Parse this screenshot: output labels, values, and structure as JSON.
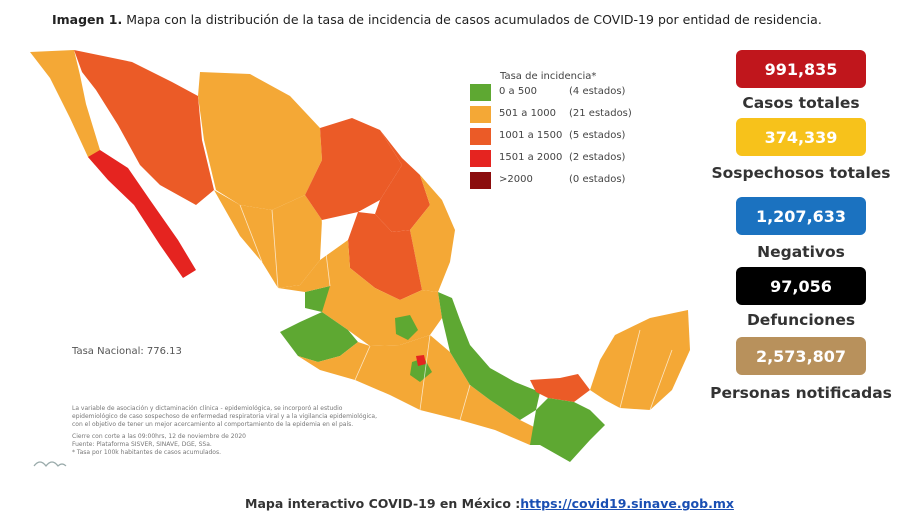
{
  "caption": {
    "lead": "Imagen 1.",
    "text": "Mapa con la distribución de la tasa de incidencia de casos acumulados de COVID-19 por entidad de residencia."
  },
  "legend": {
    "title": "Tasa de incidencia*",
    "items": [
      {
        "range": "0 a   500",
        "count": "(4 estados)",
        "color": "#5ea832"
      },
      {
        "range": "501 a  1000",
        "count": "(21 estados)",
        "color": "#f4a836"
      },
      {
        "range": "1001 a  1500",
        "count": "(5 estados)",
        "color": "#eb5b27"
      },
      {
        "range": "1501 a  2000",
        "count": "(2 estados)",
        "color": "#e52420"
      },
      {
        "range": ">2000",
        "count": "(0 estados)",
        "color": "#8b0d0d"
      }
    ]
  },
  "national_rate": "Tasa Nacional: 776.13",
  "notes": [
    "La variable de asociación y dictaminación clínica - epidemiológica, se incorporó al estudio",
    "epidemiológico de caso sospechoso de enfermedad respiratoria viral y a la vigilancia epidemiológica,",
    "con el objetivo de tener un mejor acercamiento al comportamiento de la epidemia en el país.",
    "Cierre con corte a las 09:00hrs, 12 de noviembre de 2020",
    "Fuente: Plataforma SISVER, SINAVE, DGE, SSa.",
    "* Tasa por 100k habitantes de casos acumulados."
  ],
  "stats": [
    {
      "value": "991,835",
      "label": "Casos totales",
      "color": "#c0161c"
    },
    {
      "value": "374,339",
      "label": "Sospechosos totales",
      "color": "#f7c21b"
    },
    {
      "value": "1,207,633",
      "label": "Negativos",
      "color": "#1b72c0"
    },
    {
      "value": "97,056",
      "label": "Defunciones",
      "color": "#000000"
    },
    {
      "value": "2,573,807",
      "label": "Personas notificadas",
      "color": "#b8915c"
    }
  ],
  "footer": {
    "text": "Mapa interactivo COVID-19 en México :",
    "link": "https://covid19.sinave.gob.mx"
  },
  "colors": {
    "green": "#5ea832",
    "orange": "#f4a836",
    "dark_orange": "#eb5b27",
    "red": "#e52420"
  }
}
